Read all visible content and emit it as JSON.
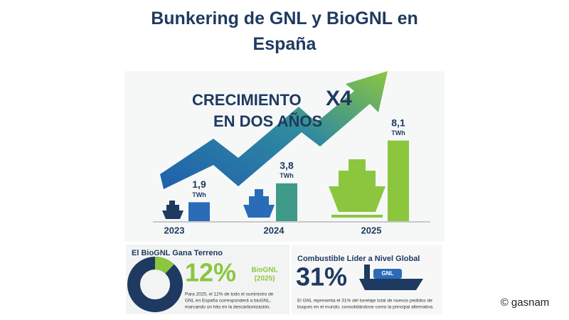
{
  "title": "Bunkering de GNL y BioGNL en España",
  "chart_data": [
    {
      "type": "bar",
      "headline": [
        "CRECIMIENTO",
        "X4",
        "EN DOS AÑOS"
      ],
      "categories": [
        "2023",
        "2024",
        "2025"
      ],
      "values": [
        1.9,
        3.8,
        8.1
      ],
      "value_labels": [
        "1,9",
        "3,8",
        "8,1"
      ],
      "unit": "TWh",
      "colors": [
        "#2a6cb8",
        "#3f9a8a",
        "#8cc63f"
      ]
    },
    {
      "type": "donut",
      "title": "El BioGNL Gana Terreno",
      "values": [
        12
      ],
      "value_labels": [
        "12%"
      ],
      "label": [
        "BioGNL",
        "(2025)"
      ],
      "color": "#8cc63f",
      "rest_color": "#1f3a60",
      "text": [
        "Para 2025, el 12% de todo el suministro de",
        "GNL en España corresponderá a bioGNL,",
        "marcando un hito en la descarbonización."
      ]
    }
  ],
  "panel": {
    "title": "Combustible Líder a Nivel Global",
    "stat": "31%",
    "ship_label": "GNL",
    "text": [
      "El GNL representa el 31% del tonelaje total de nuevos pedidos de",
      "buques en el mundo, consolidándose como la principal alternativa."
    ]
  },
  "credit": "© gasnam"
}
